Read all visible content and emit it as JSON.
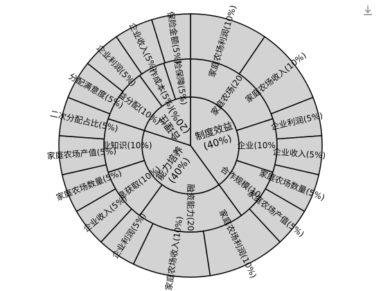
{
  "toolbar": {
    "download_icon": "download-icon"
  },
  "chart_data": {
    "type": "sunburst",
    "title": "",
    "colors": {
      "segment_fill": "#d3d3d3",
      "stroke": "#000000"
    },
    "rings": [
      [
        {
          "label": "制度效益(40%)",
          "value": 40
        },
        {
          "label": "能力培养(40%)",
          "value": 40
        },
        {
          "label": "合理性(20%)",
          "value": 20
        }
      ],
      [
        {
          "label": "家庭农场(20%)",
          "value": 20
        },
        {
          "label": "企业(10%)",
          "value": 10
        },
        {
          "label": "合作规模(10%)",
          "value": 10
        },
        {
          "label": "融资能力(20%)",
          "value": 20
        },
        {
          "label": "信息获取(10%)",
          "value": 10
        },
        {
          "label": "专业知识(10%)",
          "value": 10
        },
        {
          "label": "利益分配(10%)",
          "value": 10
        },
        {
          "label": "合作成本(5%)",
          "value": 5
        },
        {
          "label": "风险保障(5%)",
          "value": 5
        }
      ],
      [
        {
          "label": "家庭农场利润(10%)",
          "value": 10
        },
        {
          "label": "家庭农场收入(10%)",
          "value": 10
        },
        {
          "label": "企业利润(5%)",
          "value": 5
        },
        {
          "label": "企业收入(5%)",
          "value": 5
        },
        {
          "label": "家庭农场数量(5%)",
          "value": 5
        },
        {
          "label": "家庭农场产值(5%)",
          "value": 5
        },
        {
          "label": "家庭农场利润(10%)",
          "value": 10
        },
        {
          "label": "家庭农场收入(10%)",
          "value": 10
        },
        {
          "label": "企业利润(5%)",
          "value": 5
        },
        {
          "label": "企业收入(5%)",
          "value": 5
        },
        {
          "label": "家庭农场数量(5%)",
          "value": 5
        },
        {
          "label": "家庭农场产值(5%)",
          "value": 5
        },
        {
          "label": "二次分配占比(5%)",
          "value": 5
        },
        {
          "label": "分配满意度(5%)",
          "value": 5
        },
        {
          "label": "企业利润(5%)",
          "value": 5
        },
        {
          "label": "企业收入(5%)",
          "value": 5
        },
        {
          "label": "保险金额(5%)",
          "value": 5
        }
      ]
    ]
  }
}
